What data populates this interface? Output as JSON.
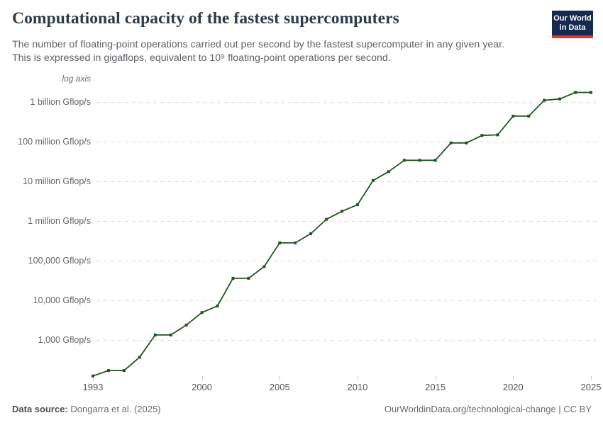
{
  "header": {
    "title": "Computational capacity of the fastest supercomputers",
    "subtitle_lines": [
      "The number of floating-point operations carried out per second by the fastest supercomputer in any given year.",
      "This is expressed in gigaflops, equivalent to 10⁹ floating-point operations per second."
    ],
    "logo": {
      "line1": "Our World",
      "line2": "in Data",
      "bg_color": "#16294F",
      "accent_color": "#D93A34"
    }
  },
  "chart_data": {
    "type": "line",
    "title": "Computational capacity of the fastest supercomputers",
    "unit": "Gflop/s",
    "y_scale": "log",
    "log_axis_note": "log axis",
    "grid": "horizontal-dashed",
    "legend_position": "none",
    "ylim": [
      100,
      2000000000
    ],
    "x": [
      1993,
      1994,
      1995,
      1996,
      1997,
      1998,
      1999,
      2000,
      2001,
      2002,
      2003,
      2004,
      2005,
      2006,
      2007,
      2008,
      2009,
      2010,
      2011,
      2012,
      2013,
      2014,
      2015,
      2016,
      2017,
      2018,
      2019,
      2020,
      2021,
      2022,
      2023,
      2024,
      2025
    ],
    "series": [
      {
        "name": "Fastest supercomputer",
        "color": "#235321",
        "values": [
          124,
          170,
          170,
          368,
          1338,
          1338,
          2380,
          4938,
          7230,
          35860,
          35860,
          70720,
          280600,
          280600,
          478200,
          1105000,
          1759000,
          2566000,
          10510000,
          17590000,
          33862700,
          33862700,
          33862700,
          93014600,
          93014600,
          143500000,
          148600000,
          442010000,
          442010000,
          1102000000,
          1194000000,
          1742000000,
          1742000000
        ]
      }
    ],
    "y_ticks": [
      {
        "value": 1000000000,
        "label": "1 billion Gflop/s"
      },
      {
        "value": 100000000,
        "label": "100 million Gflop/s"
      },
      {
        "value": 10000000,
        "label": "10 million Gflop/s"
      },
      {
        "value": 1000000,
        "label": "1 million Gflop/s"
      },
      {
        "value": 100000,
        "label": "100,000 Gflop/s"
      },
      {
        "value": 10000,
        "label": "10,000 Gflop/s"
      },
      {
        "value": 1000,
        "label": "1,000 Gflop/s"
      }
    ],
    "x_ticks": [
      1993,
      2000,
      2005,
      2010,
      2015,
      2020,
      2025
    ]
  },
  "footer": {
    "datasource_label": "Data source:",
    "datasource_value": "Dongarra et al. (2025)",
    "credit": "OurWorldinData.org/technological-change | CC BY"
  }
}
